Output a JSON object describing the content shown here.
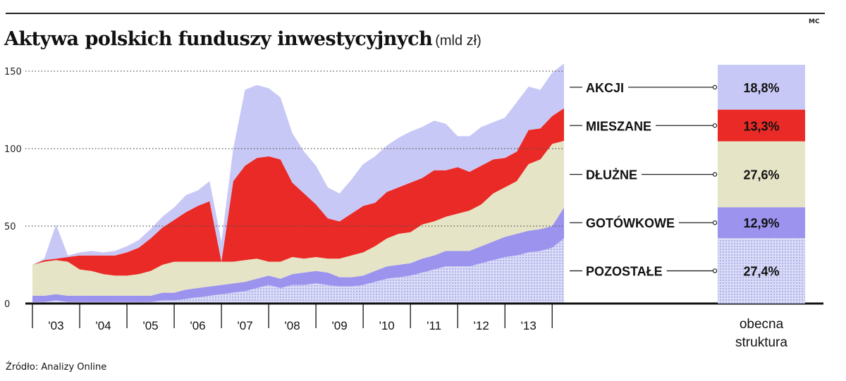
{
  "title": "Aktywa polskich funduszy inwestycyjnych",
  "unit": "(mld zł)",
  "credit": "MC",
  "source": "Źródło: Analizy Online",
  "colors": {
    "akcji": "#c8c8f6",
    "mieszane": "#ea2a26",
    "dluzne": "#e6e4c6",
    "gotowkowe": "#9b93ee",
    "pozostale": "#d9dbf7",
    "pozostale_dot": "#8f93dc"
  },
  "chart_data": {
    "type": "area",
    "stacked": true,
    "title": "Aktywa polskich funduszy inwestycyjnych",
    "ylabel": "(mld zł)",
    "ylim": [
      0,
      150
    ],
    "yticks": [
      0,
      50,
      100,
      150
    ],
    "xlim": [
      2002.5,
      2013.75
    ],
    "x_tick_labels": [
      "'03",
      "'04",
      "'05",
      "'06",
      "'07",
      "'08",
      "'09",
      "'10",
      "'11",
      "'12",
      "'13"
    ],
    "x_tick_years": [
      2003,
      2004,
      2005,
      2006,
      2007,
      2008,
      2009,
      2010,
      2011,
      2012,
      2013
    ],
    "x": [
      2002.5,
      2002.75,
      2003.0,
      2003.25,
      2003.5,
      2003.75,
      2004.0,
      2004.25,
      2004.5,
      2004.75,
      2005.0,
      2005.25,
      2005.5,
      2005.75,
      2006.0,
      2006.25,
      2006.5,
      2006.75,
      2007.0,
      2007.25,
      2007.5,
      2007.75,
      2008.0,
      2008.25,
      2008.5,
      2008.75,
      2009.0,
      2009.25,
      2009.5,
      2009.75,
      2010.0,
      2010.25,
      2010.5,
      2010.75,
      2011.0,
      2011.25,
      2011.5,
      2011.75,
      2012.0,
      2012.25,
      2012.5,
      2012.75,
      2013.0,
      2013.25,
      2013.5,
      2013.75
    ],
    "series": [
      {
        "name": "POZOSTAŁE",
        "values": [
          1,
          1,
          2,
          1,
          1,
          1,
          1,
          1,
          1,
          1,
          1,
          2,
          2,
          3,
          4,
          5,
          6,
          7,
          8,
          10,
          12,
          10,
          12,
          12,
          13,
          12,
          11,
          11,
          12,
          14,
          16,
          17,
          18,
          20,
          22,
          24,
          24,
          24,
          26,
          28,
          30,
          31,
          33,
          34,
          36,
          42
        ]
      },
      {
        "name": "GOTÓWKOWE",
        "values": [
          4,
          4,
          4,
          4,
          4,
          4,
          4,
          4,
          4,
          4,
          4,
          5,
          5,
          6,
          6,
          6,
          6,
          6,
          6,
          6,
          6,
          6,
          7,
          8,
          8,
          8,
          6,
          6,
          6,
          7,
          8,
          8,
          8,
          9,
          9,
          10,
          10,
          10,
          11,
          12,
          13,
          14,
          14,
          14,
          14,
          20
        ]
      },
      {
        "name": "DŁUŻNE",
        "values": [
          20,
          22,
          22,
          22,
          17,
          16,
          14,
          13,
          13,
          14,
          16,
          18,
          20,
          18,
          17,
          16,
          15,
          14,
          14,
          13,
          9,
          11,
          11,
          9,
          9,
          9,
          12,
          14,
          15,
          16,
          18,
          20,
          20,
          22,
          22,
          22,
          24,
          26,
          27,
          31,
          32,
          34,
          43,
          45,
          53,
          43
        ]
      },
      {
        "name": "MIESZANE",
        "values": [
          0,
          1,
          1,
          3,
          9,
          10,
          12,
          13,
          15,
          17,
          21,
          24,
          27,
          32,
          36,
          39,
          0,
          52,
          61,
          65,
          68,
          66,
          48,
          42,
          34,
          26,
          24,
          27,
          30,
          28,
          30,
          30,
          32,
          30,
          33,
          30,
          30,
          25,
          25,
          22,
          19,
          19,
          22,
          20,
          18,
          21
        ]
      },
      {
        "name": "AKCJI",
        "values": [
          0,
          1,
          22,
          1,
          2,
          3,
          2,
          3,
          4,
          5,
          6,
          7,
          8,
          11,
          10,
          13,
          13,
          21,
          49,
          47,
          44,
          40,
          32,
          27,
          25,
          20,
          18,
          22,
          27,
          30,
          30,
          32,
          33,
          33,
          32,
          30,
          20,
          23,
          25,
          24,
          26,
          32,
          28,
          25,
          28,
          29
        ]
      }
    ],
    "current_structure": {
      "label": "obecna struktura",
      "segments": [
        {
          "name": "AKCJI",
          "value": 18.8,
          "text": "18,8%"
        },
        {
          "name": "MIESZANE",
          "value": 13.3,
          "text": "13,3%"
        },
        {
          "name": "DŁUŻNE",
          "value": 27.6,
          "text": "27,6%"
        },
        {
          "name": "GOTÓWKOWE",
          "value": 12.9,
          "text": "12,9%"
        },
        {
          "name": "POZOSTAŁE",
          "value": 27.4,
          "text": "27,4%"
        }
      ]
    }
  }
}
